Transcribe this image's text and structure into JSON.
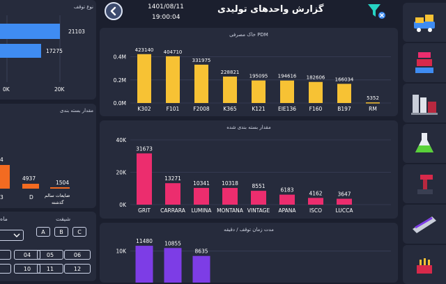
{
  "header": {
    "title": "گزارش واحدهای تولیدی",
    "date": "1401/08/11",
    "time": "19:00:04"
  },
  "colors": {
    "background": "#1b1f2e",
    "panel": "#262b3c",
    "yellow": "#f7c234",
    "pink": "#ec2d6e",
    "purple": "#7d3de6",
    "blue": "#3f8cf2",
    "orange": "#f36b21"
  },
  "icons": [
    "back-arrow-icon",
    "filter-clear-icon",
    "packing-machine-icon",
    "press-machine-icon",
    "factory-icon",
    "flask-icon",
    "robot-arm-icon",
    "conveyor-icon",
    "kiln-icon"
  ],
  "left_top": {
    "title": "نوع توقف",
    "values": [
      "21103",
      "17275"
    ],
    "ticks": [
      "0K",
      "20K"
    ]
  },
  "left_mid": {
    "title": "مقدار بسته بندی",
    "items": [
      {
        "value": "4",
        "label": ""
      },
      {
        "value": "4937",
        "label": "D"
      },
      {
        "value": "1504",
        "label": "ضایعات سالم"
      },
      {
        "value": "",
        "label": "گذشته"
      }
    ],
    "cut_label": "3"
  },
  "controls": {
    "shift_label": "شیفت",
    "month_label": "ماه",
    "shifts": [
      "A",
      "B",
      "C"
    ],
    "months": [
      "04",
      "05",
      "06",
      "10",
      "11",
      "12"
    ]
  },
  "chart_data": [
    {
      "type": "bar",
      "title": "خاک مصرفی PDM",
      "categories": [
        "K302",
        "F101",
        "F2008",
        "K365",
        "K121",
        "EIE136",
        "F160",
        "B197",
        "RM"
      ],
      "values": [
        423140,
        404710,
        331975,
        228821,
        195095,
        194616,
        182606,
        166034,
        5352
      ],
      "labels": [
        "423140",
        "404710",
        "331975",
        "228821",
        "195095",
        "194616",
        "182606",
        "166034",
        "5352"
      ],
      "ylim": [
        0,
        500000
      ],
      "ticks": [
        {
          "v": 0,
          "t": "0.0M"
        },
        {
          "v": 200000,
          "t": "0.2M"
        },
        {
          "v": 400000,
          "t": "0.4M"
        }
      ],
      "color": "#f7c234"
    },
    {
      "type": "bar",
      "title": "مقدار بسته بندی شده",
      "categories": [
        "GRIT",
        "CARRARA",
        "LUMINA",
        "MONTANA",
        "VINTAGE",
        "APANA",
        "ISCO",
        "LUCCA"
      ],
      "values": [
        31673,
        13271,
        10341,
        10318,
        8551,
        6183,
        4162,
        3647
      ],
      "labels": [
        "31673",
        "13271",
        "10341",
        "10318",
        "8551",
        "6183",
        "4162",
        "3647"
      ],
      "ylim": [
        0,
        40000
      ],
      "ticks": [
        {
          "v": 0,
          "t": "0K"
        },
        {
          "v": 20000,
          "t": "20K"
        },
        {
          "v": 40000,
          "t": "40K"
        }
      ],
      "color": "#ec2d6e"
    },
    {
      "type": "bar",
      "title": "مدت زمان توقف / دقیقه",
      "categories": [
        "",
        "",
        ""
      ],
      "values": [
        11480,
        10855,
        8635
      ],
      "labels": [
        "11480",
        "10855",
        "8635"
      ],
      "ylim": [
        0,
        15000
      ],
      "ticks": [
        {
          "v": 10000,
          "t": "10K"
        }
      ],
      "color": "#7d3de6"
    }
  ]
}
